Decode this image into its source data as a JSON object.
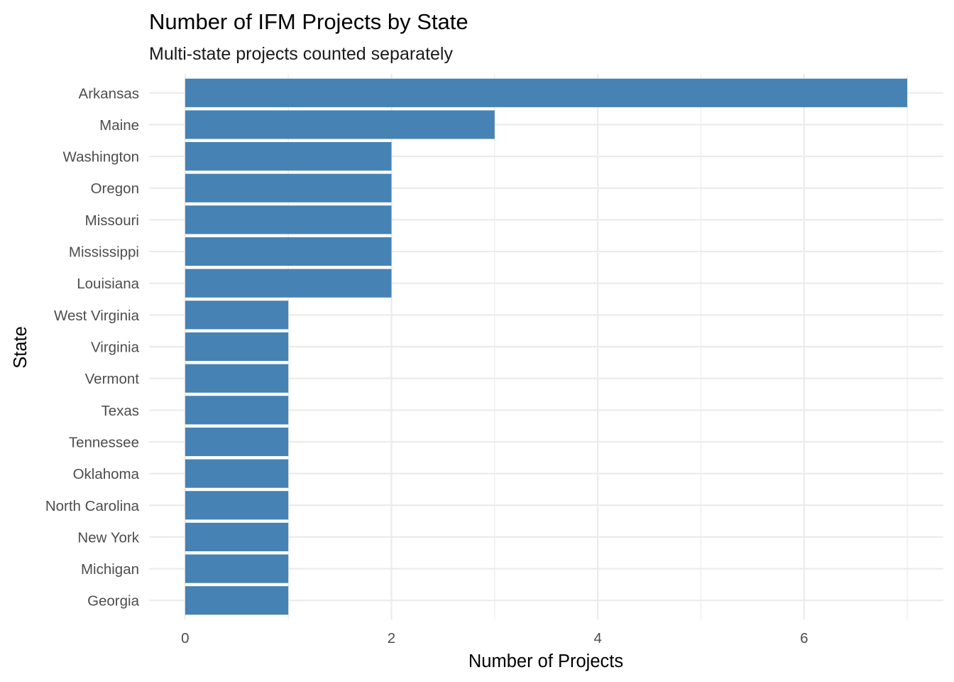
{
  "chart_data": {
    "type": "bar",
    "orientation": "horizontal",
    "title": "Number of IFM Projects by State",
    "subtitle": "Multi-state projects counted separately",
    "xlabel": "Number of Projects",
    "ylabel": "State",
    "categories": [
      "Arkansas",
      "Maine",
      "Washington",
      "Oregon",
      "Missouri",
      "Mississippi",
      "Louisiana",
      "West Virginia",
      "Virginia",
      "Vermont",
      "Texas",
      "Tennessee",
      "Oklahoma",
      "North Carolina",
      "New York",
      "Michigan",
      "Georgia"
    ],
    "values": [
      7,
      3,
      2,
      2,
      2,
      2,
      2,
      1,
      1,
      1,
      1,
      1,
      1,
      1,
      1,
      1,
      1
    ],
    "xlim": [
      -0.35,
      7.35
    ],
    "xticks": [
      0,
      2,
      4,
      6
    ],
    "xtick_labels": [
      "0",
      "2",
      "4",
      "6"
    ],
    "grid": true,
    "bar_color": "#4682B4",
    "grid_color": "#EBEBEB"
  }
}
